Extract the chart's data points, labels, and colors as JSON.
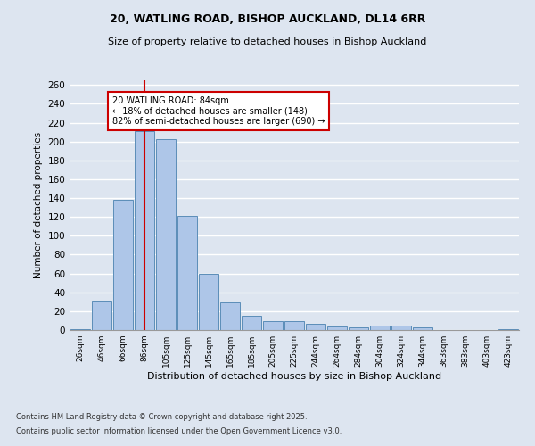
{
  "title_line1": "20, WATLING ROAD, BISHOP AUCKLAND, DL14 6RR",
  "title_line2": "Size of property relative to detached houses in Bishop Auckland",
  "xlabel": "Distribution of detached houses by size in Bishop Auckland",
  "ylabel": "Number of detached properties",
  "categories": [
    "26sqm",
    "46sqm",
    "66sqm",
    "86sqm",
    "105sqm",
    "125sqm",
    "145sqm",
    "165sqm",
    "185sqm",
    "205sqm",
    "225sqm",
    "244sqm",
    "264sqm",
    "284sqm",
    "304sqm",
    "324sqm",
    "344sqm",
    "363sqm",
    "383sqm",
    "403sqm",
    "423sqm"
  ],
  "values": [
    1,
    30,
    138,
    211,
    203,
    121,
    60,
    29,
    15,
    9,
    9,
    7,
    4,
    3,
    5,
    5,
    3,
    0,
    0,
    0,
    1
  ],
  "bar_color": "#aec6e8",
  "bar_edge_color": "#5b8db8",
  "bg_color": "#dde5f0",
  "grid_color": "#ffffff",
  "vline_x": 3,
  "vline_color": "#cc0000",
  "annotation_text": "20 WATLING ROAD: 84sqm\n← 18% of detached houses are smaller (148)\n82% of semi-detached houses are larger (690) →",
  "annotation_box_color": "#ffffff",
  "annotation_box_edge": "#cc0000",
  "ylim": [
    0,
    265
  ],
  "yticks": [
    0,
    20,
    40,
    60,
    80,
    100,
    120,
    140,
    160,
    180,
    200,
    220,
    240,
    260
  ],
  "footnote1": "Contains HM Land Registry data © Crown copyright and database right 2025.",
  "footnote2": "Contains public sector information licensed under the Open Government Licence v3.0.",
  "title_fontsize1": 9,
  "title_fontsize2": 8
}
